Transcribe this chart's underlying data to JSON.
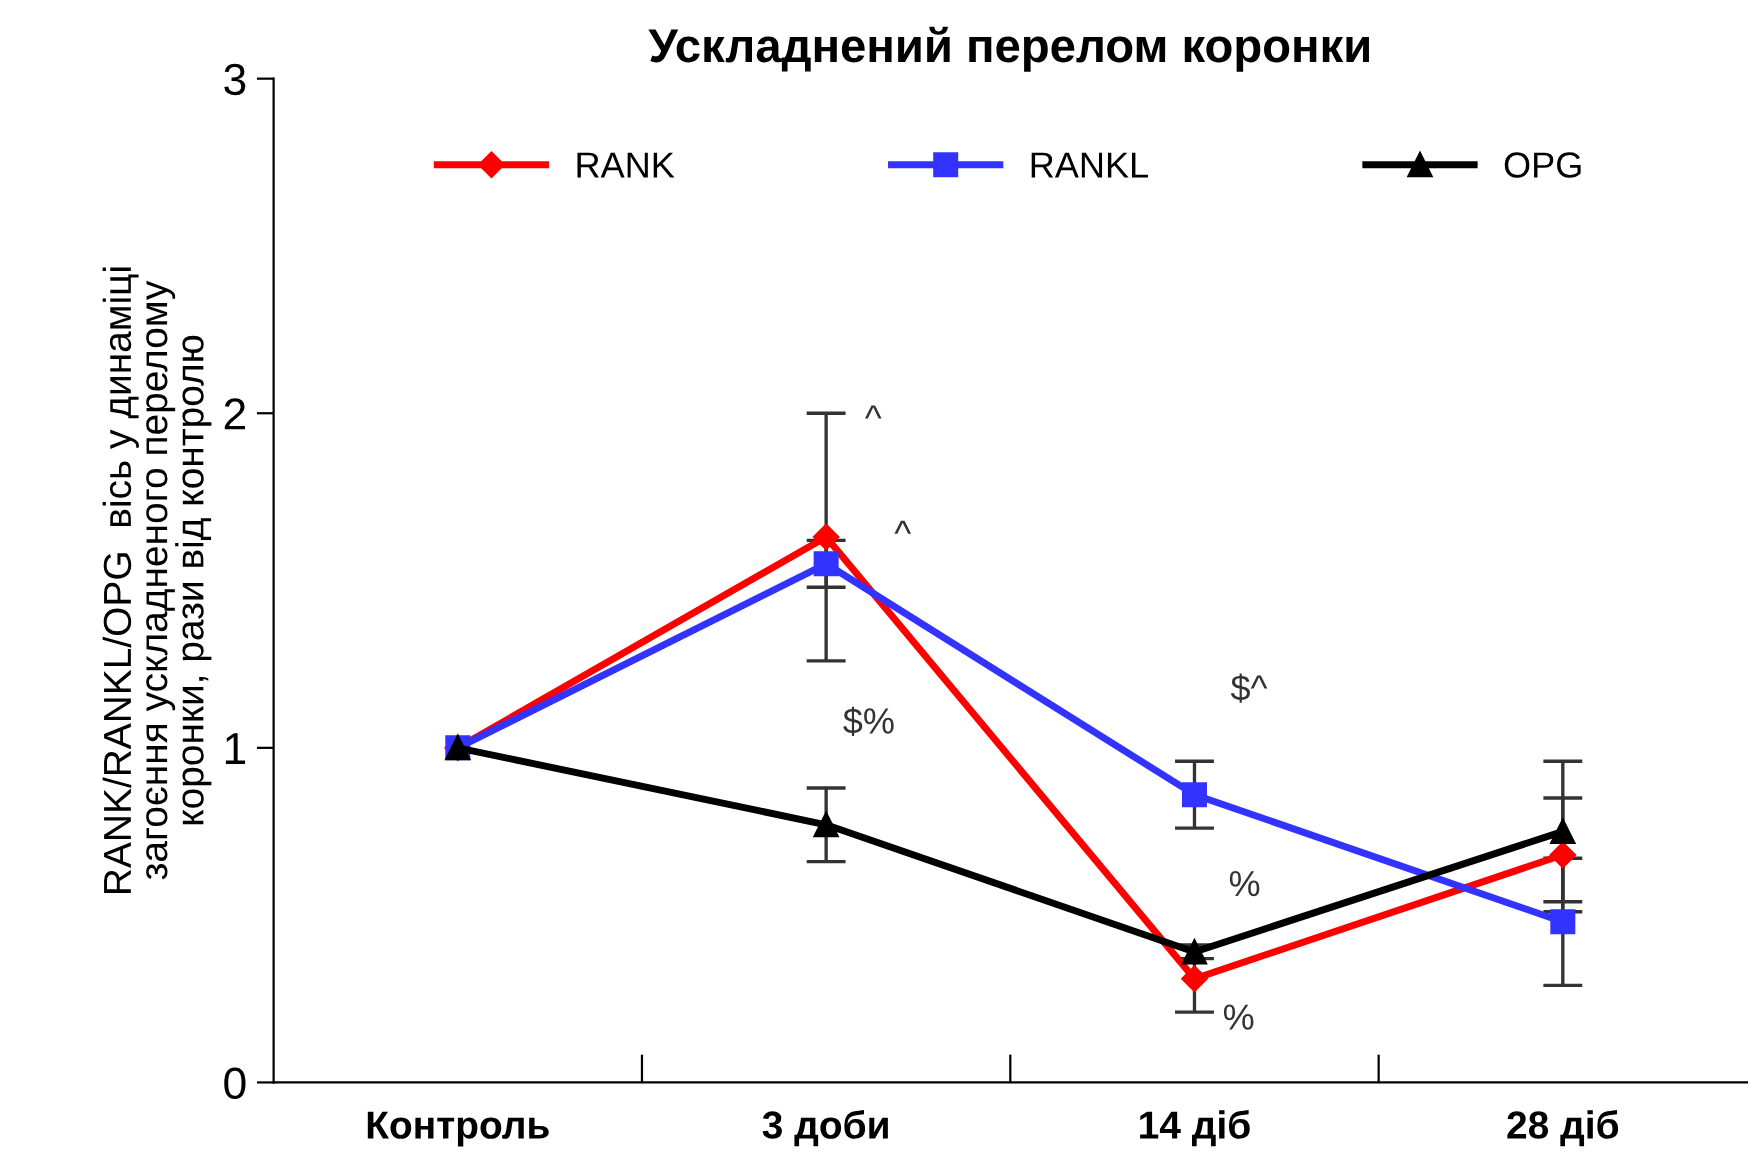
{
  "chart_data": {
    "type": "line",
    "title": "Ускладнений перелом коронки",
    "ylabel": "RANK/RANKL/OPG  вісь у динаміці\nзагоєння ускладненого перелому\nкоронки, рази від контролю",
    "categories": [
      "Контроль",
      "3 доби",
      "14 діб",
      "28 діб"
    ],
    "series": [
      {
        "name": "RANK",
        "color": "#ff0000",
        "marker": "diamond",
        "values": [
          1.0,
          1.63,
          0.31,
          0.68
        ],
        "errors": [
          null,
          0.37,
          0.1,
          0.17
        ]
      },
      {
        "name": "RANKL",
        "color": "#3333ff",
        "marker": "square",
        "values": [
          1.0,
          1.55,
          0.86,
          0.48
        ],
        "errors": [
          null,
          0.07,
          0.1,
          0.19
        ]
      },
      {
        "name": "OPG",
        "color": "#000000",
        "marker": "triangle",
        "values": [
          1.0,
          0.77,
          0.39,
          0.75
        ],
        "errors": [
          null,
          0.11,
          0.02,
          0.21
        ]
      }
    ],
    "ylim": [
      0,
      3
    ],
    "yticks": [
      0,
      1,
      2,
      3
    ],
    "grid": false,
    "legend": "top",
    "line_style": "solid",
    "annotations": [
      "^",
      "^",
      "$%",
      "$^",
      "%",
      "%"
    ]
  }
}
